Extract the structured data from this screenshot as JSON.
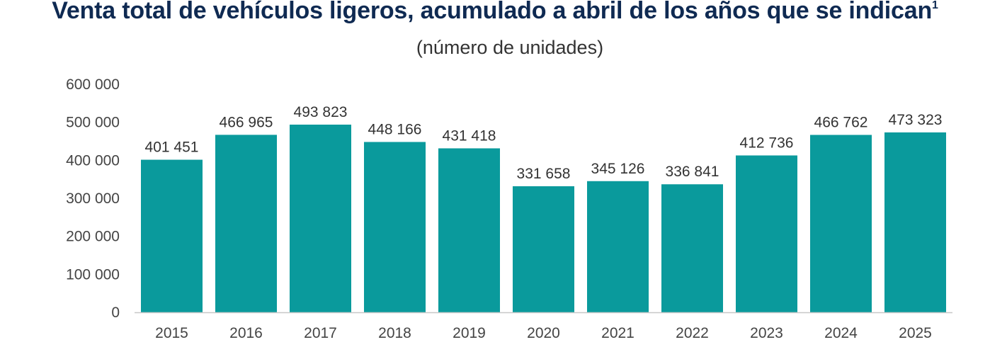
{
  "chart_data": {
    "type": "bar",
    "title": "Venta total de vehículos ligeros, acumulado a abril de los años que se indican",
    "title_footnote": "1",
    "subtitle": "(número de unidades)",
    "categories": [
      "2015",
      "2016",
      "2017",
      "2018",
      "2019",
      "2020",
      "2021",
      "2022",
      "2023",
      "2024",
      "2025"
    ],
    "values": [
      401451,
      466965,
      493823,
      448166,
      431418,
      331658,
      345126,
      336841,
      412736,
      466762,
      473323
    ],
    "data_labels": [
      "401 451",
      "466 965",
      "493 823",
      "448 166",
      "431 418",
      "331 658",
      "345 126",
      "336 841",
      "412 736",
      "466 762",
      "473 323"
    ],
    "ylim": [
      0,
      600000
    ],
    "yticks": [
      0,
      100000,
      200000,
      300000,
      400000,
      500000,
      600000
    ],
    "ytick_labels": [
      "0",
      "100 000",
      "200 000",
      "300 000",
      "400 000",
      "500 000",
      "600 000"
    ],
    "xlabel": "",
    "ylabel": "",
    "grid": false,
    "bar_color": "#0a9a9c"
  }
}
